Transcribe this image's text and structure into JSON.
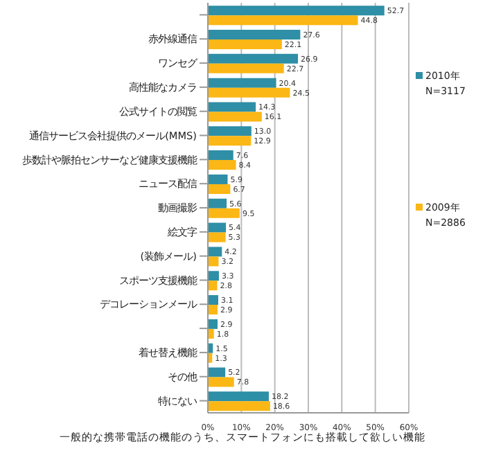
{
  "chart_data": {
    "type": "bar",
    "orientation": "horizontal",
    "xlabel": "一般的な携帯電話の機能のうち、スマートフォンにも搭載して欲しい機能",
    "categories": [
      null,
      "赤外線通信",
      "ワンセグ",
      "高性能なカメラ",
      "公式サイトの閲覧",
      "通信サービス会社提供のメール(MMS)",
      "歩数計や脈拍センサーなど健康支援機能",
      "ニュース配信",
      "動画撮影",
      "絵文字",
      "(装飾メール)",
      "スポーツ支援機能",
      "デコレーションメール",
      null,
      "着せ替え機能",
      "その他",
      "特にない"
    ],
    "series": [
      {
        "name": "2010年",
        "color": "#2e8fa6",
        "values": [
          52.7,
          27.6,
          26.9,
          20.4,
          14.3,
          13.0,
          7.6,
          5.9,
          5.6,
          5.4,
          4.2,
          3.3,
          3.1,
          2.9,
          1.5,
          5.2,
          18.2
        ],
        "value_labels": [
          "52.7",
          "27.6",
          "26.9",
          "20.4",
          "14.3",
          "13.0",
          "7.6",
          "5.9",
          "5.6",
          "5.4",
          "4.2",
          "3.3",
          "3.1",
          "2.9",
          "1.5",
          "5.2",
          "18.2"
        ]
      },
      {
        "name": "2009年",
        "color": "#fbb715",
        "values": [
          44.8,
          22.1,
          22.7,
          24.5,
          16.1,
          12.9,
          8.4,
          6.7,
          9.5,
          5.3,
          3.2,
          2.8,
          2.9,
          1.8,
          1.3,
          7.8,
          18.6
        ],
        "value_labels": [
          "44.8",
          "22.1",
          "22.7",
          "24.5",
          "16.1",
          "12.9",
          "8.4",
          "6.7",
          "9.5",
          "5.3",
          "3.2",
          "2.8",
          "2.9",
          "1.8",
          "1.3",
          "7.8",
          "18.6"
        ]
      }
    ],
    "xlim": [
      0,
      60
    ],
    "xticks": [
      {
        "value": 0,
        "label": "0%"
      },
      {
        "value": 10,
        "label": "10%"
      },
      {
        "value": 20,
        "label": "20%"
      },
      {
        "value": 30,
        "label": "30%"
      },
      {
        "value": 40,
        "label": "40%"
      },
      {
        "value": 50,
        "label": "50%"
      },
      {
        "value": 60,
        "label": "60%"
      }
    ],
    "grid": "x",
    "legend": "right",
    "annotations": [
      "N=3117",
      "N=2886"
    ]
  }
}
